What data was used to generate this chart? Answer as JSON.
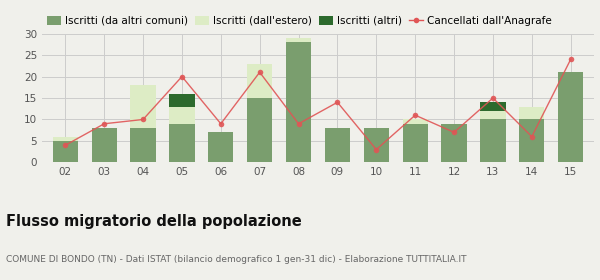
{
  "years": [
    "02",
    "03",
    "04",
    "05",
    "06",
    "07",
    "08",
    "09",
    "10",
    "11",
    "12",
    "13",
    "14",
    "15"
  ],
  "iscritti_altri_comuni": [
    5,
    8,
    8,
    9,
    7,
    15,
    28,
    8,
    8,
    9,
    9,
    10,
    10,
    21
  ],
  "iscritti_estero": [
    1,
    0,
    10,
    4,
    0,
    8,
    1,
    0,
    0,
    1,
    0,
    2,
    3,
    0
  ],
  "iscritti_altri": [
    0,
    0,
    0,
    3,
    0,
    0,
    0,
    0,
    0,
    0,
    0,
    2,
    0,
    0
  ],
  "cancellati": [
    4,
    9,
    10,
    20,
    9,
    21,
    9,
    14,
    3,
    11,
    7,
    15,
    6,
    24
  ],
  "color_altri_comuni": "#7a9e6e",
  "color_estero": "#ddecc5",
  "color_altri": "#2d6a2d",
  "color_cancellati": "#e05555",
  "background_color": "#f0f0eb",
  "grid_color": "#cccccc",
  "ylim": [
    0,
    30
  ],
  "yticks": [
    0,
    5,
    10,
    15,
    20,
    25,
    30
  ],
  "title": "Flusso migratorio della popolazione",
  "subtitle": "COMUNE DI BONDO (TN) - Dati ISTAT (bilancio demografico 1 gen-31 dic) - Elaborazione TUTTITALIA.IT",
  "legend_labels": [
    "Iscritti (da altri comuni)",
    "Iscritti (dall'estero)",
    "Iscritti (altri)",
    "Cancellati dall'Anagrafe"
  ],
  "title_fontsize": 10.5,
  "subtitle_fontsize": 6.5,
  "tick_fontsize": 7.5,
  "legend_fontsize": 7.5
}
